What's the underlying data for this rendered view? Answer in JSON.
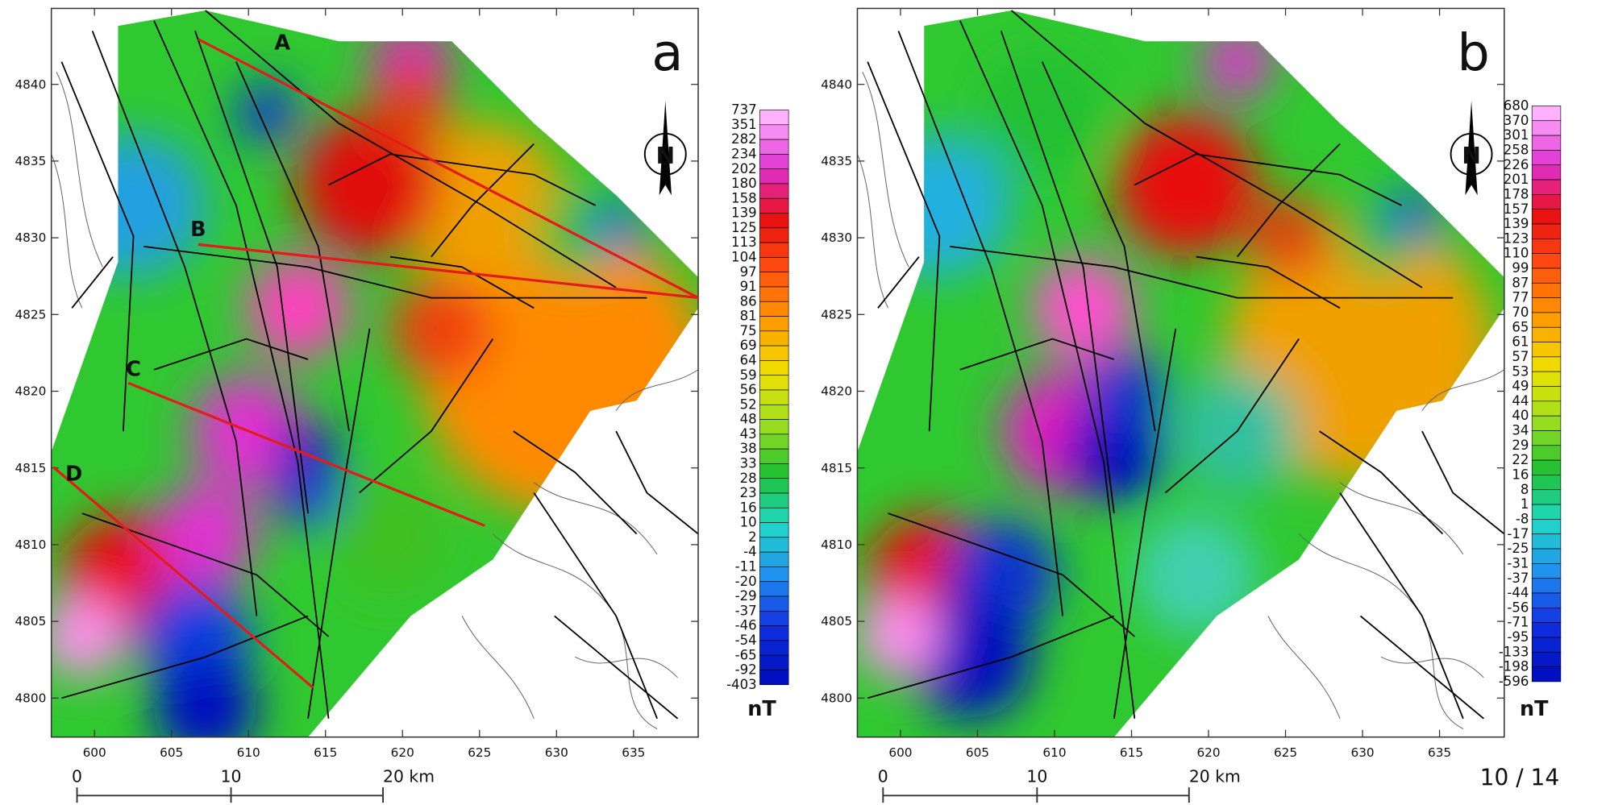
{
  "panels": [
    {
      "label": "a",
      "y_ticks": [
        4840,
        4835,
        4830,
        4825,
        4820,
        4815,
        4810,
        4805,
        4800
      ],
      "x_ticks": [
        600,
        605,
        610,
        615,
        620,
        625,
        630,
        635
      ],
      "colorbar": {
        "labels": [
          737,
          351,
          282,
          234,
          202,
          180,
          158,
          139,
          125,
          113,
          104,
          97,
          91,
          86,
          81,
          75,
          69,
          64,
          59,
          56,
          52,
          48,
          43,
          38,
          33,
          28,
          23,
          16,
          10,
          2,
          -4,
          -11,
          -20,
          -29,
          -37,
          -46,
          -54,
          -65,
          -92,
          -403
        ],
        "unit": "nT"
      },
      "profiles": [
        "A",
        "B",
        "C",
        "D"
      ],
      "north": "N",
      "scale_bar": [
        "0",
        "10",
        "20 km"
      ]
    },
    {
      "label": "b",
      "y_ticks": [
        4840,
        4835,
        4830,
        4825,
        4820,
        4815,
        4810,
        4805,
        4800
      ],
      "x_ticks": [
        600,
        605,
        610,
        615,
        620,
        625,
        630,
        635
      ],
      "colorbar": {
        "labels": [
          680,
          370,
          301,
          258,
          226,
          201,
          178,
          157,
          139,
          123,
          110,
          99,
          87,
          77,
          70,
          65,
          61,
          57,
          53,
          49,
          44,
          40,
          34,
          29,
          22,
          16,
          8,
          1,
          -8,
          -17,
          -25,
          -31,
          -37,
          -44,
          -56,
          -71,
          -95,
          -133,
          -198,
          -596
        ],
        "unit": "nT"
      },
      "north": "N",
      "scale_bar": [
        "0",
        "10",
        "20 km"
      ]
    }
  ],
  "page_number": "10 / 14"
}
